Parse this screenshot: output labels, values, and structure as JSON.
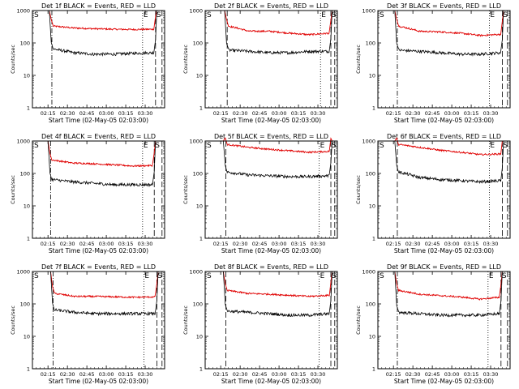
{
  "figure": {
    "panels": [
      {
        "title": "Det 1f BLACK = Events, RED = LLD"
      },
      {
        "title": "Det 2f BLACK = Events, RED = LLD"
      },
      {
        "title": "Det 3f BLACK = Events, RED = LLD"
      },
      {
        "title": "Det 4f BLACK = Events, RED = LLD"
      },
      {
        "title": "Det 5f BLACK = Events, RED = LLD"
      },
      {
        "title": "Det 6f BLACK = Events, RED = LLD"
      },
      {
        "title": "Det 7f BLACK = Events, RED = LLD"
      },
      {
        "title": "Det 8f BLACK = Events, RED = LLD"
      },
      {
        "title": "Det 9f BLACK = Events, RED = LLD"
      }
    ]
  },
  "chart_data": {
    "type": "line",
    "layout": "3x3 grid of panels",
    "title_template": "Det {n}f BLACK = Events, RED = LLD",
    "xlabel": "Start Time (02-May-05 02:03:00)",
    "ylabel": "Counts/sec",
    "x_unit": "minutes since 02:03:00",
    "xlim": [
      0,
      102
    ],
    "xticks": [
      12,
      27,
      42,
      57,
      72,
      87
    ],
    "xtick_labels": [
      "02:15",
      "02:30",
      "02:45",
      "03:00",
      "03:15",
      "03:30"
    ],
    "ylog": true,
    "ylim": [
      1,
      1000
    ],
    "yticks": [
      1,
      10,
      100,
      1000
    ],
    "ytick_labels": [
      "1",
      "10",
      "100",
      "1000"
    ],
    "colors": {
      "events": "#000000",
      "lld": "#e00000"
    },
    "markers": [
      "S",
      "E",
      "S"
    ],
    "panels": [
      {
        "detector": "1f",
        "sep_start": 15,
        "line_e": 85,
        "line_s2": 95,
        "vline_style": [
          "dashdot",
          "dotted",
          "dashed"
        ],
        "events_level": [
          65,
          50,
          45,
          45,
          48,
          50
        ],
        "lld_level": [
          330,
          290,
          275,
          265,
          260,
          265
        ]
      },
      {
        "detector": "2f",
        "sep_start": 17,
        "line_e": 89,
        "line_s2": 97,
        "vline_style": [
          "dashed",
          "dotted",
          "dashed"
        ],
        "events_level": [
          60,
          55,
          50,
          50,
          55,
          55
        ],
        "lld_level": [
          330,
          230,
          230,
          200,
          180,
          200
        ]
      },
      {
        "detector": "3f",
        "sep_start": 15,
        "line_e": 86,
        "line_s2": 96,
        "vline_style": [
          "dashdot",
          "dotted",
          "dashed"
        ],
        "events_level": [
          60,
          55,
          50,
          45,
          45,
          50
        ],
        "lld_level": [
          330,
          230,
          220,
          200,
          170,
          185
        ]
      },
      {
        "detector": "4f",
        "sep_start": 14,
        "line_e": 85,
        "line_s2": 94,
        "vline_style": [
          "dashdot",
          "dotted",
          "dashed"
        ],
        "events_level": [
          65,
          55,
          50,
          45,
          45,
          45
        ],
        "lld_level": [
          260,
          210,
          200,
          185,
          170,
          175
        ]
      },
      {
        "detector": "5f",
        "sep_start": 16,
        "line_e": 88,
        "line_s2": 97,
        "vline_style": [
          "dashed",
          "dotted",
          "dashed"
        ],
        "events_level": [
          110,
          90,
          85,
          80,
          80,
          85
        ],
        "lld_level": [
          780,
          640,
          560,
          500,
          450,
          480
        ]
      },
      {
        "detector": "6f",
        "sep_start": 15,
        "line_e": 86,
        "line_s2": 96,
        "vline_style": [
          "dashed",
          "dotted",
          "dashed"
        ],
        "events_level": [
          110,
          75,
          65,
          60,
          55,
          60
        ],
        "lld_level": [
          780,
          640,
          520,
          450,
          380,
          400
        ]
      },
      {
        "detector": "7f",
        "sep_start": 16,
        "line_e": 86,
        "line_s2": 96,
        "vline_style": [
          "dashdot",
          "dotted",
          "dashed"
        ],
        "events_level": [
          65,
          55,
          50,
          50,
          50,
          50
        ],
        "lld_level": [
          210,
          170,
          170,
          165,
          160,
          165
        ]
      },
      {
        "detector": "8f",
        "sep_start": 16,
        "line_e": 88,
        "line_s2": 97,
        "vline_style": [
          "dashed",
          "dotted",
          "dashed"
        ],
        "events_level": [
          60,
          55,
          50,
          45,
          45,
          50
        ],
        "lld_level": [
          260,
          210,
          200,
          185,
          170,
          185
        ]
      },
      {
        "detector": "9f",
        "sep_start": 15,
        "line_e": 85,
        "line_s2": 95,
        "vline_style": [
          "dashdot",
          "dotted",
          "dashed"
        ],
        "events_level": [
          55,
          50,
          45,
          45,
          45,
          50
        ],
        "lld_level": [
          260,
          200,
          180,
          165,
          140,
          160
        ]
      }
    ]
  }
}
